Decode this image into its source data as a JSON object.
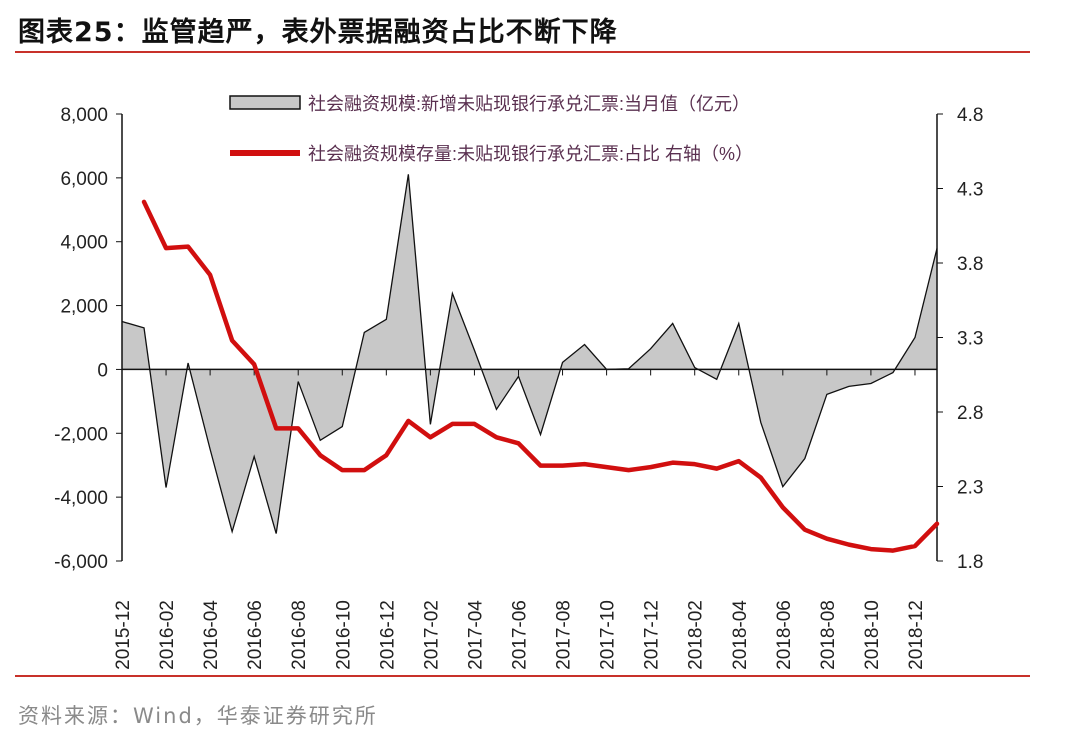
{
  "title": "图表25：监管趋严，表外票据融资占比不断下降",
  "source": "资料来源：Wind，华泰证券研究所",
  "chart_data": {
    "type": "area+line",
    "x": [
      "2015-12",
      "2016-01",
      "2016-02",
      "2016-03",
      "2016-04",
      "2016-05",
      "2016-06",
      "2016-07",
      "2016-08",
      "2016-09",
      "2016-10",
      "2016-11",
      "2016-12",
      "2017-01",
      "2017-02",
      "2017-03",
      "2017-04",
      "2017-05",
      "2017-06",
      "2017-07",
      "2017-08",
      "2017-09",
      "2017-10",
      "2017-11",
      "2017-12",
      "2018-01",
      "2018-02",
      "2018-03",
      "2018-04",
      "2018-05",
      "2018-06",
      "2018-07",
      "2018-08",
      "2018-09",
      "2018-10",
      "2018-11",
      "2018-12",
      "2019-01"
    ],
    "x_tick_labels": [
      "2015-12",
      "2016-02",
      "2016-04",
      "2016-06",
      "2016-08",
      "2016-10",
      "2016-12",
      "2017-02",
      "2017-04",
      "2017-06",
      "2017-08",
      "2017-10",
      "2017-12",
      "2018-02",
      "2018-04",
      "2018-06",
      "2018-08",
      "2018-10",
      "2018-12"
    ],
    "left_axis": {
      "ylim": [
        -6000,
        8000
      ],
      "ticks": [
        "8,000",
        "6,000",
        "4,000",
        "2,000",
        "0",
        "-2,000",
        "-4,000",
        "-6,000"
      ],
      "tick_values": [
        8000,
        6000,
        4000,
        2000,
        0,
        -2000,
        -4000,
        -6000
      ]
    },
    "right_axis": {
      "ylim": [
        1.8,
        4.8
      ],
      "ticks": [
        "4.8",
        "4.3",
        "3.8",
        "3.3",
        "2.8",
        "2.3",
        "1.8"
      ],
      "tick_values": [
        4.8,
        4.3,
        3.8,
        3.3,
        2.8,
        2.3,
        1.8
      ]
    },
    "series": [
      {
        "name": "社会融资规模:新增未贴现银行承兑汇票:当月值（亿元）",
        "type": "area",
        "axis": "left",
        "color": "#c8c8c8",
        "values": [
          1500,
          1300,
          -3700,
          200,
          -2500,
          -5080,
          -2730,
          -5140,
          -380,
          -2220,
          -1790,
          1160,
          1570,
          6110,
          -1720,
          2380,
          600,
          -1250,
          -220,
          -2040,
          220,
          780,
          0,
          20,
          650,
          1440,
          60,
          -310,
          1440,
          -1660,
          -3670,
          -2790,
          -780,
          -530,
          -440,
          -100,
          1000,
          3790
        ]
      },
      {
        "name": "社会融资规模存量:未贴现银行承兑汇票:占比 右轴（%）",
        "type": "line",
        "axis": "right",
        "color": "#d10f0f",
        "values": [
          null,
          4.21,
          3.9,
          3.91,
          3.72,
          3.28,
          3.12,
          2.69,
          2.69,
          2.51,
          2.41,
          2.41,
          2.51,
          2.74,
          2.63,
          2.72,
          2.72,
          2.63,
          2.59,
          2.44,
          2.44,
          2.45,
          2.43,
          2.41,
          2.43,
          2.46,
          2.45,
          2.42,
          2.47,
          2.36,
          2.16,
          2.01,
          1.95,
          1.91,
          1.88,
          1.87,
          1.9,
          2.05
        ]
      }
    ],
    "legend_position": "top",
    "grid": false
  }
}
